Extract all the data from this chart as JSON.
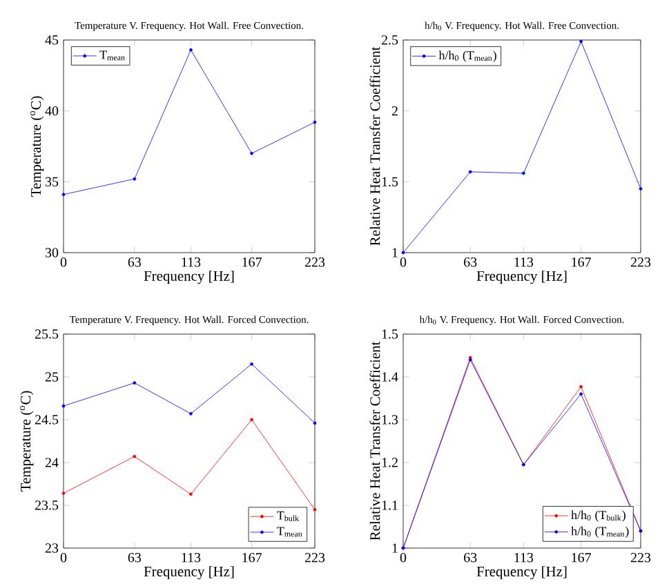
{
  "chart_data": [
    {
      "type": "line",
      "title": "Temperature V. Frequency. Hot Wall. Free Convection.",
      "xlabel": "Frequency [Hz]",
      "ylabel": "Temperature ($^{o}$C)",
      "x": [
        0,
        63,
        113,
        167,
        223
      ],
      "xlim": [
        0,
        223
      ],
      "xticks": [
        0,
        63,
        113,
        167,
        223
      ],
      "ylim": [
        30,
        45
      ],
      "yticks": [
        30,
        35,
        40,
        45
      ],
      "legend": "top left",
      "marker": "circle",
      "line_style": "solid",
      "series": [
        {
          "name": "T$_{mean}$",
          "color": "#0000ff",
          "values": [
            34.1,
            35.2,
            44.3,
            37.0,
            39.2
          ]
        }
      ]
    },
    {
      "type": "line",
      "title": "h/h$_{0}$ V. Frequency. Hot Wall. Free Convection.",
      "xlabel": "Frequency [Hz]",
      "ylabel": "Relative Heat Transfer Coefficient",
      "x": [
        0,
        63,
        113,
        167,
        223
      ],
      "xlim": [
        0,
        223
      ],
      "xticks": [
        0,
        63,
        113,
        167,
        223
      ],
      "ylim": [
        1,
        2.5
      ],
      "yticks": [
        1,
        1.5,
        2,
        2.5
      ],
      "legend": "top left",
      "marker": "circle",
      "line_style": "solid",
      "series": [
        {
          "name": "h/h$_{0}$ (T$_{mean}$)",
          "color": "#0000ff",
          "values": [
            1.0,
            1.57,
            1.56,
            2.49,
            1.45
          ]
        }
      ]
    },
    {
      "type": "line",
      "title": "Temperature V. Frequency. Hot Wall. Forced Convection.",
      "xlabel": "Frequency [Hz]",
      "ylabel": "Temperature ($^{o}$C)",
      "x": [
        0,
        63,
        113,
        167,
        223
      ],
      "xlim": [
        0,
        223
      ],
      "xticks": [
        0,
        63,
        113,
        167,
        223
      ],
      "ylim": [
        23,
        25.5
      ],
      "yticks": [
        23,
        23.5,
        24,
        24.5,
        25,
        25.5
      ],
      "legend": "bottom right",
      "marker": "circle",
      "line_style": "solid",
      "series": [
        {
          "name": "T$_{bulk}$",
          "color": "#ff0000",
          "values": [
            23.64,
            24.07,
            23.63,
            24.5,
            23.45
          ]
        },
        {
          "name": "T$_{mean}$",
          "color": "#0000ff",
          "values": [
            24.66,
            24.93,
            24.57,
            25.15,
            24.46
          ]
        }
      ]
    },
    {
      "type": "line",
      "title": "h/h$_{0}$ V. Frequency. Hot Wall. Forced Convection.",
      "xlabel": "Frequency [Hz]",
      "ylabel": "Relative Heat Transfer Coefficient",
      "x": [
        0,
        63,
        113,
        167,
        223
      ],
      "xlim": [
        0,
        223
      ],
      "xticks": [
        0,
        63,
        113,
        167,
        223
      ],
      "ylim": [
        1,
        1.5
      ],
      "yticks": [
        1,
        1.1,
        1.2,
        1.3,
        1.4,
        1.5
      ],
      "legend": "bottom right",
      "marker": "circle",
      "line_style": "solid",
      "series": [
        {
          "name": "h/h$_{0}$ (T$_{bulk}$)",
          "color": "#ff0000",
          "values": [
            1.0,
            1.445,
            1.195,
            1.377,
            1.04
          ]
        },
        {
          "name": "h/h$_{0}$ (T$_{mean}$)",
          "color": "#0000ff",
          "values": [
            1.0,
            1.44,
            1.195,
            1.36,
            1.04
          ]
        }
      ]
    }
  ]
}
